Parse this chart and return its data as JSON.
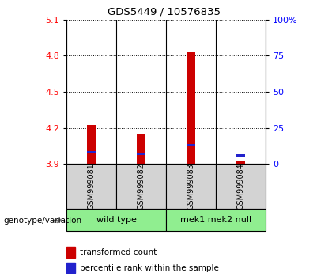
{
  "title": "GDS5449 / 10576835",
  "samples": [
    "GSM999081",
    "GSM999082",
    "GSM999083",
    "GSM999084"
  ],
  "group_spans": [
    [
      0,
      1,
      "wild type"
    ],
    [
      2,
      3,
      "mek1 mek2 null"
    ]
  ],
  "transformed_counts": [
    4.22,
    4.15,
    4.83,
    3.92
  ],
  "percentile_ranks": [
    8,
    7,
    13,
    6
  ],
  "ylim_left": [
    3.9,
    5.1
  ],
  "ylim_right": [
    0,
    100
  ],
  "yticks_left": [
    3.9,
    4.2,
    4.5,
    4.8,
    5.1
  ],
  "yticks_right": [
    0,
    25,
    50,
    75,
    100
  ],
  "ytick_labels_right": [
    "0",
    "25",
    "50",
    "75",
    "100%"
  ],
  "red_color": "#CC0000",
  "blue_color": "#2222CC",
  "bar_width": 0.18,
  "bg_color": "#ffffff",
  "sample_row_color": "#d3d3d3",
  "group_row_color": "#90EE90",
  "label_row": "genotype/variation"
}
